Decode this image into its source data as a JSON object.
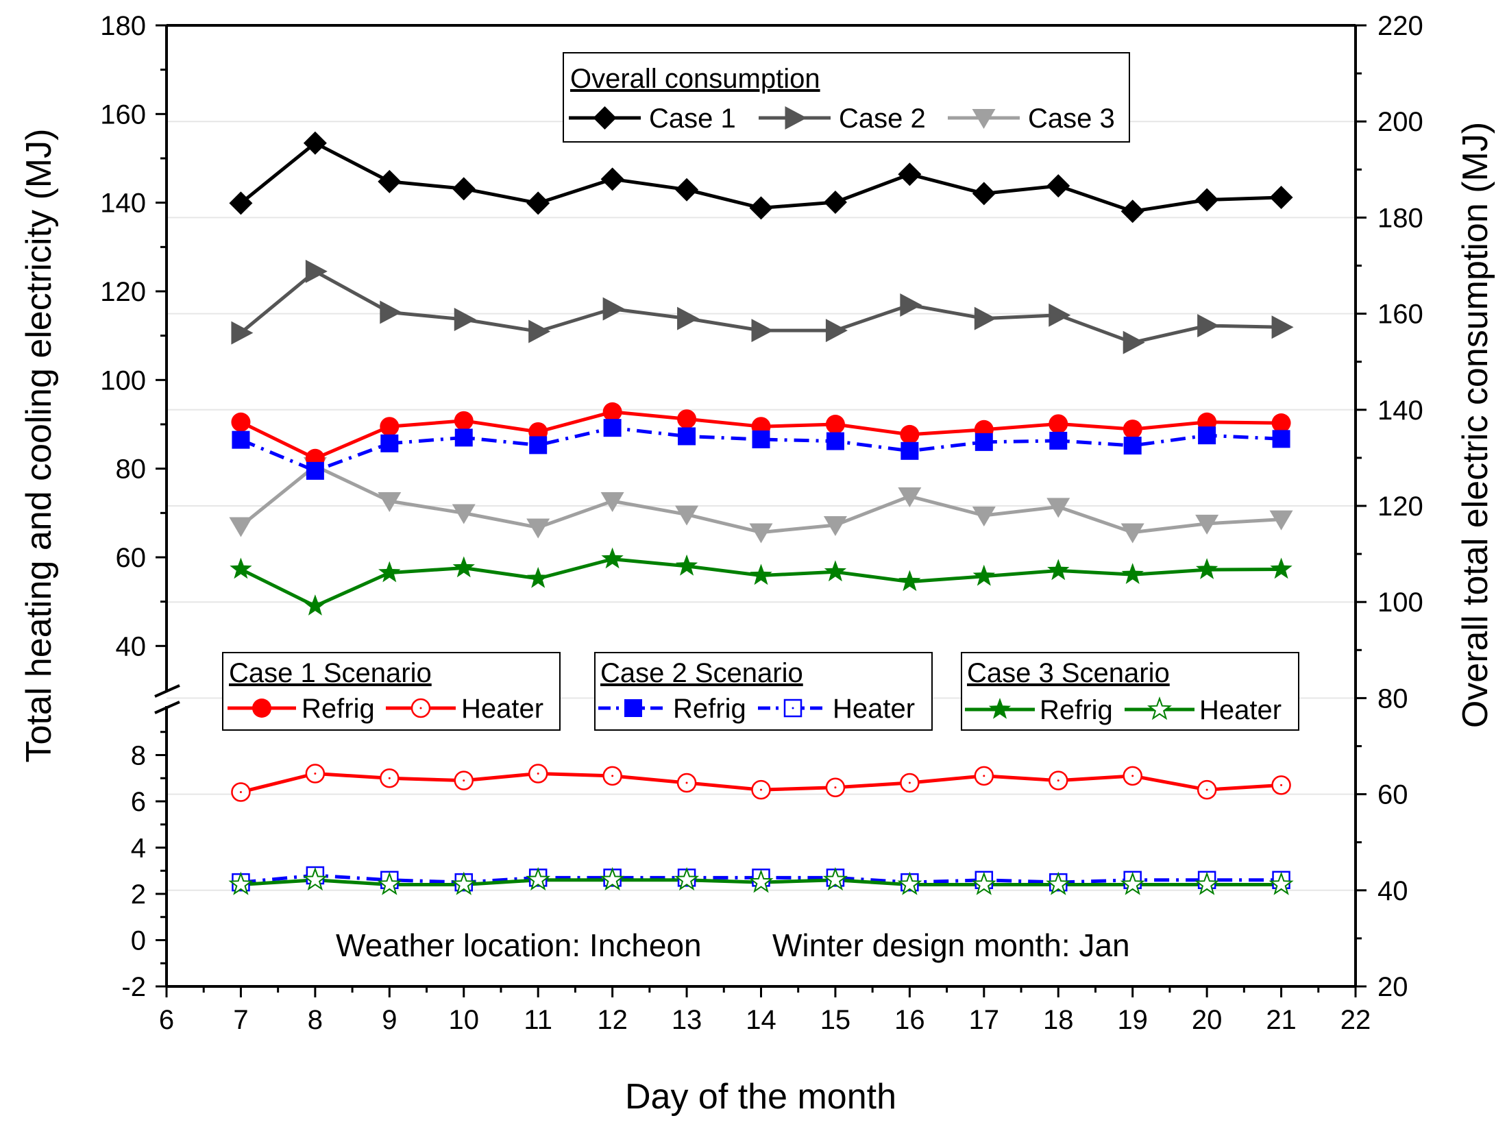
{
  "chart_data": {
    "type": "line",
    "xlabel": "Day of the month",
    "ylabel_left": "Total heating and cooling electricity (MJ)",
    "ylabel_right": "Overall total electric consumption (MJ)",
    "xlim": [
      6,
      22
    ],
    "x_ticks": [
      "6",
      "7",
      "8",
      "9",
      "10",
      "11",
      "12",
      "13",
      "14",
      "15",
      "16",
      "17",
      "18",
      "19",
      "20",
      "21",
      "22"
    ],
    "left_axis": {
      "broken": true,
      "upper_segment": {
        "range": [
          30,
          180
        ],
        "ticks": [
          "40",
          "60",
          "80",
          "100",
          "120",
          "140",
          "160",
          "180"
        ]
      },
      "lower_segment": {
        "range": [
          -2,
          10
        ],
        "ticks": [
          "-2",
          "0",
          "2",
          "4",
          "6",
          "8"
        ]
      }
    },
    "right_axis": {
      "range": [
        20,
        220
      ],
      "ticks": [
        "20",
        "40",
        "60",
        "80",
        "100",
        "120",
        "140",
        "160",
        "180",
        "200",
        "220"
      ]
    },
    "x": [
      7,
      8,
      9,
      10,
      11,
      12,
      13,
      14,
      15,
      16,
      17,
      18,
      19,
      20,
      21
    ],
    "series": [
      {
        "name": "Case 1",
        "group": "overall",
        "axis": "right",
        "color": "#000000",
        "marker": "diamond",
        "values": [
          183.0,
          195.5,
          187.5,
          186.0,
          183.0,
          188.0,
          185.8,
          182.0,
          183.2,
          189.0,
          185.0,
          186.6,
          181.3,
          183.7,
          184.2
        ]
      },
      {
        "name": "Case 2",
        "group": "overall",
        "axis": "right",
        "color": "#555555",
        "marker": "triangle-right",
        "values": [
          156.0,
          168.8,
          160.3,
          158.8,
          156.3,
          161.0,
          159.0,
          156.5,
          156.5,
          161.8,
          159.0,
          159.7,
          154.0,
          157.5,
          157.2
        ]
      },
      {
        "name": "Case 3",
        "group": "overall",
        "axis": "right",
        "color": "#a0a0a0",
        "marker": "triangle-down",
        "values": [
          115.8,
          128.3,
          121.0,
          118.5,
          115.5,
          121.0,
          118.2,
          114.5,
          116.0,
          122.0,
          118.0,
          119.8,
          114.5,
          116.3,
          117.2
        ]
      },
      {
        "name": "Case 1 Refrig",
        "group": "Case 1 Scenario",
        "axis": "left",
        "color": "#ff0000",
        "marker": "circle-filled",
        "values": [
          90.5,
          82.3,
          89.5,
          90.8,
          88.3,
          92.8,
          91.2,
          89.5,
          90.0,
          87.7,
          88.8,
          90.1,
          88.9,
          90.5,
          90.3
        ]
      },
      {
        "name": "Case 1 Heater",
        "group": "Case 1 Scenario",
        "axis": "left",
        "color": "#ff0000",
        "marker": "circle-open",
        "values": [
          6.4,
          7.2,
          7.0,
          6.9,
          7.2,
          7.1,
          6.8,
          6.5,
          6.6,
          6.8,
          7.1,
          6.9,
          7.1,
          6.5,
          6.7
        ]
      },
      {
        "name": "Case 2 Refrig",
        "group": "Case 2 Scenario",
        "axis": "left",
        "color": "#0000ff",
        "marker": "square-filled",
        "values": [
          86.5,
          79.5,
          85.7,
          87.0,
          85.3,
          89.2,
          87.3,
          86.6,
          86.2,
          84.0,
          86.0,
          86.3,
          85.2,
          87.5,
          86.7
        ]
      },
      {
        "name": "Case 2 Heater",
        "group": "Case 2 Scenario",
        "axis": "left",
        "color": "#0000ff",
        "marker": "square-open",
        "values": [
          2.5,
          2.8,
          2.6,
          2.5,
          2.7,
          2.7,
          2.7,
          2.7,
          2.7,
          2.5,
          2.6,
          2.5,
          2.6,
          2.6,
          2.6
        ]
      },
      {
        "name": "Case 3 Refrig",
        "group": "Case 3 Scenario",
        "axis": "left",
        "color": "#008000",
        "marker": "star-filled",
        "values": [
          57.3,
          49.0,
          56.5,
          57.6,
          55.2,
          59.6,
          58.0,
          55.9,
          56.7,
          54.5,
          55.7,
          57.0,
          56.1,
          57.2,
          57.3
        ]
      },
      {
        "name": "Case 3 Heater",
        "group": "Case 3 Scenario",
        "axis": "left",
        "color": "#008000",
        "marker": "star-open",
        "values": [
          2.4,
          2.6,
          2.4,
          2.4,
          2.6,
          2.6,
          2.6,
          2.5,
          2.6,
          2.4,
          2.4,
          2.4,
          2.4,
          2.4,
          2.4
        ]
      }
    ],
    "legends": {
      "overall": {
        "title": "Overall consumption",
        "items": [
          "Case 1",
          "Case 2",
          "Case 3"
        ]
      },
      "case1": {
        "title": "Case 1 Scenario",
        "items": [
          "Refrig",
          "Heater"
        ]
      },
      "case2": {
        "title": "Case 2 Scenario",
        "items": [
          "Refrig",
          "Heater"
        ]
      },
      "case3": {
        "title": "Case 3 Scenario",
        "items": [
          "Refrig",
          "Heater"
        ]
      }
    },
    "annotations": {
      "weather": "Weather location: Incheon",
      "design_month": "Winter design month: Jan"
    }
  }
}
